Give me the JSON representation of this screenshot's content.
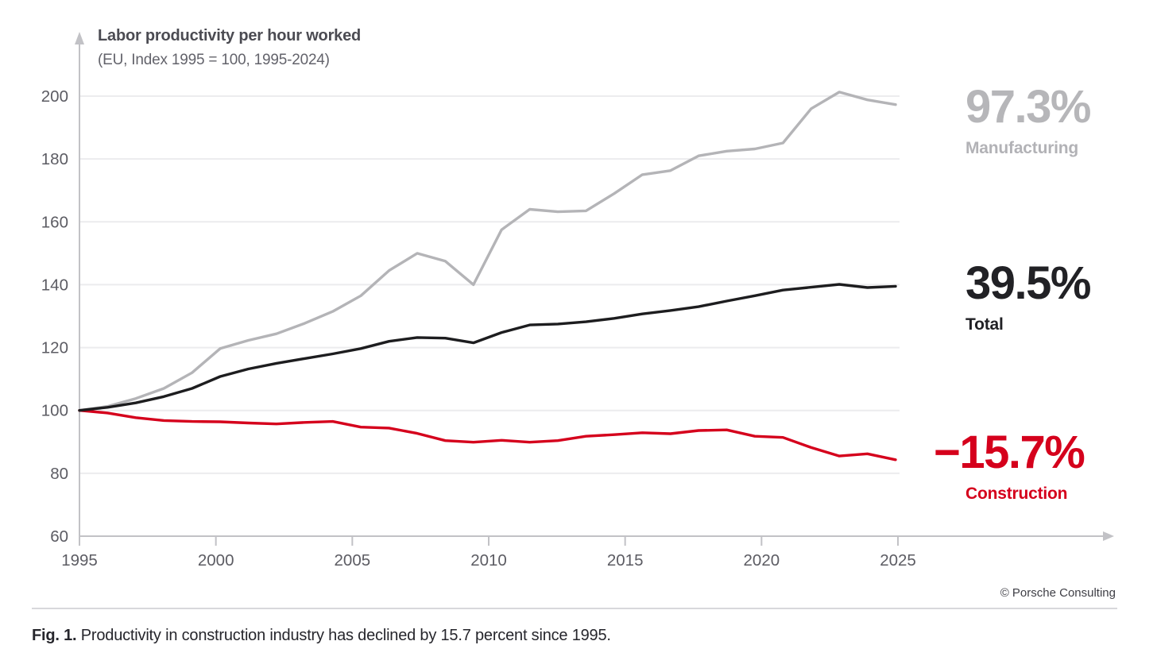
{
  "chart_data": {
    "type": "line",
    "title": "Labor productivity per hour worked",
    "subtitle": "(EU, Index 1995 = 100, 1995-2024)",
    "x": [
      1995,
      1996,
      1997,
      1998,
      1999,
      2000,
      2001,
      2002,
      2003,
      2004,
      2005,
      2006,
      2007,
      2008,
      2009,
      2010,
      2011,
      2012,
      2013,
      2014,
      2015,
      2016,
      2017,
      2018,
      2019,
      2020,
      2021,
      2022,
      2023,
      2024
    ],
    "xticks": [
      1995,
      2000,
      2005,
      2010,
      2015,
      2020,
      2025
    ],
    "yticks": [
      60,
      80,
      100,
      120,
      140,
      160,
      180,
      200
    ],
    "ylim": [
      60,
      200
    ],
    "grid": "horizontal-only",
    "legend_position": "right-direct-labels",
    "series": [
      {
        "name": "Manufacturing",
        "color": "#b4b4b7",
        "values": [
          100,
          101.3,
          103.8,
          107,
          112,
          119.7,
          122.3,
          124.4,
          127.7,
          131.5,
          136.5,
          144.5,
          150,
          147.5,
          140,
          157.5,
          164,
          163.2,
          163.5,
          169,
          175,
          176.3,
          181,
          182.5,
          183.2,
          185.1,
          196,
          201.3,
          198.8,
          197.3
        ]
      },
      {
        "name": "Total",
        "color": "#1d1d1f",
        "values": [
          100,
          101,
          102.4,
          104.4,
          107,
          110.8,
          113.2,
          115,
          116.5,
          118,
          119.7,
          122,
          123.2,
          123,
          121.5,
          124.8,
          127.2,
          127.5,
          128.2,
          129.3,
          130.7,
          131.8,
          133,
          134.8,
          136.5,
          138.3,
          139.2,
          140.1,
          139.1,
          139.5
        ]
      },
      {
        "name": "Construction",
        "color": "#d5001c",
        "values": [
          100,
          99.2,
          97.7,
          96.8,
          96.5,
          96.4,
          96,
          95.7,
          96.2,
          96.5,
          94.7,
          94.4,
          92.7,
          90.4,
          89.9,
          90.5,
          89.9,
          90.4,
          91.8,
          92.3,
          92.9,
          92.6,
          93.6,
          93.8,
          91.8,
          91.4,
          88.2,
          85.5,
          86.2,
          84.3
        ]
      }
    ]
  },
  "annotations": {
    "manufacturing": {
      "value": "97.3%",
      "label": "Manufacturing",
      "color": "#b6b6b9"
    },
    "total": {
      "value": "39.5%",
      "label": "Total",
      "color": "#212125"
    },
    "construction": {
      "value": "−15.7%",
      "label": "Construction",
      "color": "#d5001c"
    }
  },
  "footer": {
    "credit": "© Porsche Consulting",
    "caption_prefix": "Fig. 1.",
    "caption_text": " Productivity in construction industry has declined by 15.7 percent since 1995."
  },
  "theme": {
    "axis_color": "#c2c2c6",
    "grid_color": "#ececee",
    "tick_label_color": "#5c5c63"
  }
}
